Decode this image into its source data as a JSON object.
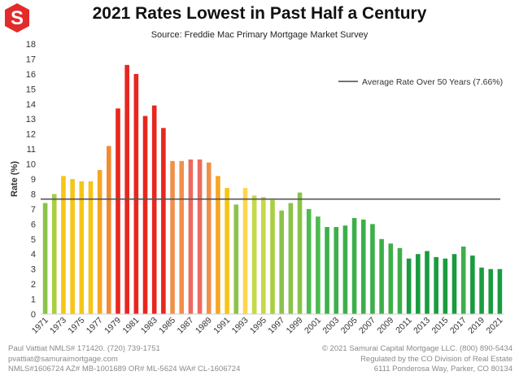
{
  "header": {
    "title": "2021 Rates Lowest in Past Half a Century",
    "subtitle": "Source: Freddie Mac Primary Mortgage Market Survey"
  },
  "logo": {
    "letter": "S",
    "color": "#e32b2b"
  },
  "chart_data": {
    "type": "bar",
    "ylabel": "Rate (%)",
    "xlabel": "",
    "ylim": [
      0,
      18
    ],
    "yticks": [
      0,
      1,
      2,
      3,
      4,
      5,
      6,
      7,
      8,
      9,
      10,
      11,
      12,
      13,
      14,
      15,
      16,
      17,
      18
    ],
    "grid": false,
    "categories": [
      "1971",
      "1972",
      "1973",
      "1974",
      "1975",
      "1976",
      "1977",
      "1978",
      "1979",
      "1980",
      "1981",
      "1982",
      "1983",
      "1984",
      "1985",
      "1986",
      "1987",
      "1988",
      "1989",
      "1990",
      "1991",
      "1992",
      "1993",
      "1994",
      "1995",
      "1996",
      "1997",
      "1998",
      "1999",
      "2000",
      "2001",
      "2002",
      "2003",
      "2004",
      "2005",
      "2006",
      "2007",
      "2008",
      "2009",
      "2010",
      "2011",
      "2012",
      "2013",
      "2014",
      "2015",
      "2016",
      "2017",
      "2018",
      "2019",
      "2020",
      "2021"
    ],
    "xtick_labels": [
      "1971",
      "1973",
      "1975",
      "1977",
      "1979",
      "1981",
      "1983",
      "1985",
      "1987",
      "1989",
      "1991",
      "1993",
      "1995",
      "1997",
      "1999",
      "2001",
      "2003",
      "2005",
      "2007",
      "2009",
      "2011",
      "2013",
      "2015",
      "2017",
      "2019",
      "2021"
    ],
    "values": [
      7.4,
      8.0,
      9.2,
      9.0,
      8.85,
      8.85,
      9.6,
      11.2,
      13.7,
      16.6,
      16.0,
      13.2,
      13.9,
      12.4,
      10.2,
      10.2,
      10.3,
      10.3,
      10.1,
      9.2,
      8.4,
      7.3,
      8.4,
      7.9,
      7.8,
      7.6,
      6.9,
      7.4,
      8.1,
      7.0,
      6.5,
      5.8,
      5.8,
      5.9,
      6.4,
      6.3,
      6.0,
      5.0,
      4.7,
      4.4,
      3.7,
      4.0,
      4.2,
      3.8,
      3.7,
      4.0,
      4.5,
      3.9,
      3.1,
      3.0,
      3.0
    ],
    "colors": [
      "#8bc34a",
      "#a8cf3f",
      "#f5c518",
      "#f5c518",
      "#f5c518",
      "#f5c518",
      "#f5a623",
      "#f08c32",
      "#e8261f",
      "#e8261f",
      "#e8261f",
      "#e8261f",
      "#e8261f",
      "#e8261f",
      "#f0904b",
      "#f0904b",
      "#ec6a5e",
      "#ec6a5e",
      "#f0904b",
      "#f5a623",
      "#f5c518",
      "#8bc34a",
      "#ffd54f",
      "#c5d94a",
      "#c5d94a",
      "#a8cf3f",
      "#8bc34a",
      "#8bc34a",
      "#8bc34a",
      "#4cbb4f",
      "#4cbb4f",
      "#3daf4a",
      "#3daf4a",
      "#3daf4a",
      "#3daf4a",
      "#3daf4a",
      "#3daf4a",
      "#3daf4a",
      "#3daf4a",
      "#3daf4a",
      "#1a9b40",
      "#1a9b40",
      "#1a9b40",
      "#1a9b40",
      "#1a9b40",
      "#1a9b40",
      "#3daf4a",
      "#1a9b40",
      "#1a9b40",
      "#1a9b40",
      "#1a9b40"
    ],
    "reference_line": {
      "value": 7.66,
      "label": "Average Rate Over 50 Years (7.66%)",
      "color": "#555555"
    },
    "legend_position": "top-right"
  },
  "footer": {
    "left": [
      "Paul Vattiat NMLS# 171420. (720) 739-1751",
      "pvattiat@samuraimortgage.com",
      "NMLS#1606724 AZ# MB-1001689 OR# ML-5624 WA# CL-1606724"
    ],
    "right": [
      "© 2021 Samurai Capital Mortgage LLC. (800) 890-5434",
      "Regulated by the CO Division of Real Estate",
      "6111 Ponderosa Way, Parker, CO 80134"
    ]
  }
}
